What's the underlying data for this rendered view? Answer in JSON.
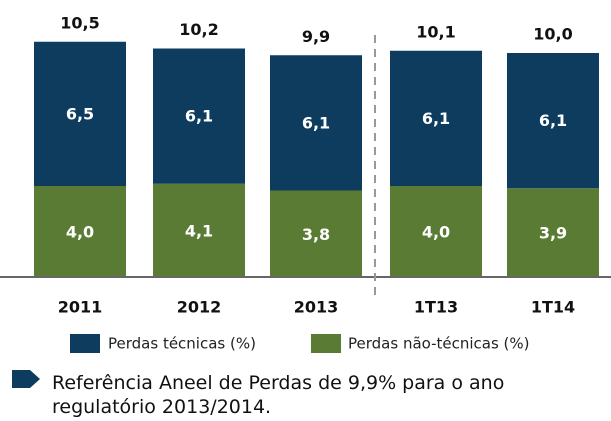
{
  "chart_data": {
    "type": "stacked_bar",
    "categories": [
      "2011",
      "2012",
      "2013",
      "1T13",
      "1T14"
    ],
    "series": [
      {
        "name": "Perdas não-técnicas (%)",
        "color": "#5a7b34",
        "values": [
          4.0,
          4.1,
          3.8,
          4.0,
          3.9
        ],
        "value_labels": [
          "4,0",
          "4,1",
          "3,8",
          "4,0",
          "3,9"
        ]
      },
      {
        "name": "Perdas técnicas (%)",
        "color": "#0d3c5e",
        "values": [
          6.5,
          6.1,
          6.1,
          6.1,
          6.1
        ],
        "value_labels": [
          "6,5",
          "6,1",
          "6,1",
          "6,1",
          "6,1"
        ]
      }
    ],
    "totals": [
      10.5,
      10.2,
      9.9,
      10.1,
      10.0
    ],
    "total_labels": [
      "10,5",
      "10,2",
      "9,9",
      "10,1",
      "10,0"
    ],
    "ylim": [
      0,
      12
    ],
    "note": "Referência Aneel de Perdas de 9,9% para o ano",
    "note_line2": "regulatório 2013/2014."
  }
}
